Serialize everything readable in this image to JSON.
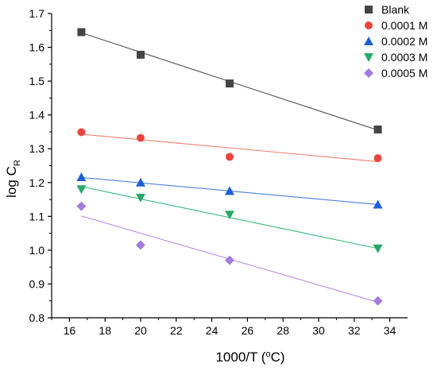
{
  "chart_data": {
    "type": "scatter",
    "xlabel": "1000/T (",
    "xlabel_sup": "o",
    "xlabel_unit": "C)",
    "ylabel": "log C",
    "ylabel_sub": "R",
    "xlim": [
      15,
      35
    ],
    "ylim": [
      0.8,
      1.7
    ],
    "xticks": [
      "16",
      "18",
      "20",
      "22",
      "24",
      "26",
      "28",
      "30",
      "32",
      "34"
    ],
    "yticks": [
      "0.8",
      "0.9",
      "1.0",
      "1.1",
      "1.2",
      "1.3",
      "1.4",
      "1.5",
      "1.6",
      "1.7"
    ],
    "legend_position": "top-right",
    "grid": false,
    "series": [
      {
        "name": "Blank",
        "marker": "square",
        "color": "#444444",
        "line_color": "#555555",
        "x": [
          16.67,
          20.0,
          25.0,
          33.33
        ],
        "y": [
          1.645,
          1.578,
          1.493,
          1.357
        ],
        "fit": [
          [
            16.67,
            1.643
          ],
          [
            33.33,
            1.355
          ]
        ]
      },
      {
        "name": "0.0001 M",
        "marker": "circle",
        "color": "#e8453c",
        "line_color": "#f08070",
        "x": [
          16.67,
          20.0,
          25.0,
          33.33
        ],
        "y": [
          1.349,
          1.332,
          1.276,
          1.272
        ],
        "fit": [
          [
            16.67,
            1.343
          ],
          [
            33.33,
            1.262
          ]
        ]
      },
      {
        "name": "0.0002 M",
        "marker": "triangle-up",
        "color": "#1f5fd6",
        "line_color": "#4a7fe0",
        "x": [
          16.67,
          20.0,
          25.0,
          33.33
        ],
        "y": [
          1.216,
          1.2,
          1.175,
          1.135
        ],
        "fit": [
          [
            16.67,
            1.215
          ],
          [
            33.33,
            1.135
          ]
        ]
      },
      {
        "name": "0.0003 M",
        "marker": "triangle-down",
        "color": "#2aa86a",
        "line_color": "#3cb878",
        "x": [
          16.67,
          20.0,
          25.0,
          33.33
        ],
        "y": [
          1.18,
          1.155,
          1.105,
          1.005
        ],
        "fit": [
          [
            16.67,
            1.188
          ],
          [
            33.33,
            1.005
          ]
        ]
      },
      {
        "name": "0.0005 M",
        "marker": "diamond",
        "color": "#a47ce0",
        "line_color": "#b78ee8",
        "x": [
          16.67,
          20.0,
          25.0,
          33.33
        ],
        "y": [
          1.13,
          1.015,
          0.97,
          0.85
        ],
        "fit": [
          [
            16.67,
            1.101
          ],
          [
            33.33,
            0.846
          ]
        ]
      }
    ]
  }
}
